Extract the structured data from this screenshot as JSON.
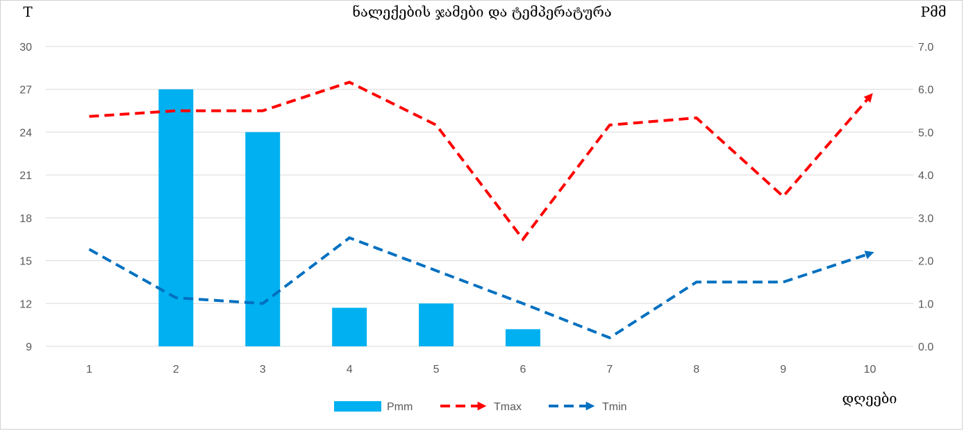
{
  "chart_data": {
    "type": "bar+line",
    "title": "ნალექების ჯამები და ტემპერატურა",
    "ylabel_left": "T",
    "ylabel_right": "Pმმ",
    "xlabel": "დღეები",
    "categories": [
      "1",
      "2",
      "3",
      "4",
      "5",
      "6",
      "7",
      "8",
      "9",
      "10"
    ],
    "ylim_left": [
      9,
      30
    ],
    "yticks_left": [
      "9",
      "12",
      "15",
      "18",
      "21",
      "24",
      "27",
      "30"
    ],
    "ylim_right": [
      0,
      7
    ],
    "yticks_right": [
      "0.0",
      "1.0",
      "2.0",
      "3.0",
      "4.0",
      "5.0",
      "6.0",
      "7.0"
    ],
    "grid": true,
    "legend_position": "bottom",
    "series": [
      {
        "name": "Pmm",
        "type": "bar",
        "axis": "right",
        "color": "#00b0f0",
        "values": [
          0,
          6.0,
          5.0,
          0.9,
          1.0,
          0.4,
          0,
          0,
          0,
          0
        ]
      },
      {
        "name": "Tmax",
        "type": "line",
        "axis": "left",
        "color": "#ff0000",
        "dashed": true,
        "arrow_end": true,
        "values": [
          25.1,
          25.5,
          25.5,
          27.5,
          24.5,
          16.5,
          24.5,
          25.0,
          19.5,
          26.5
        ]
      },
      {
        "name": "Tmin",
        "type": "line",
        "axis": "left",
        "color": "#0070c0",
        "dashed": true,
        "arrow_end": true,
        "values": [
          15.8,
          12.4,
          12.0,
          16.6,
          14.3,
          12.0,
          9.6,
          13.5,
          13.5,
          15.5
        ]
      }
    ]
  }
}
